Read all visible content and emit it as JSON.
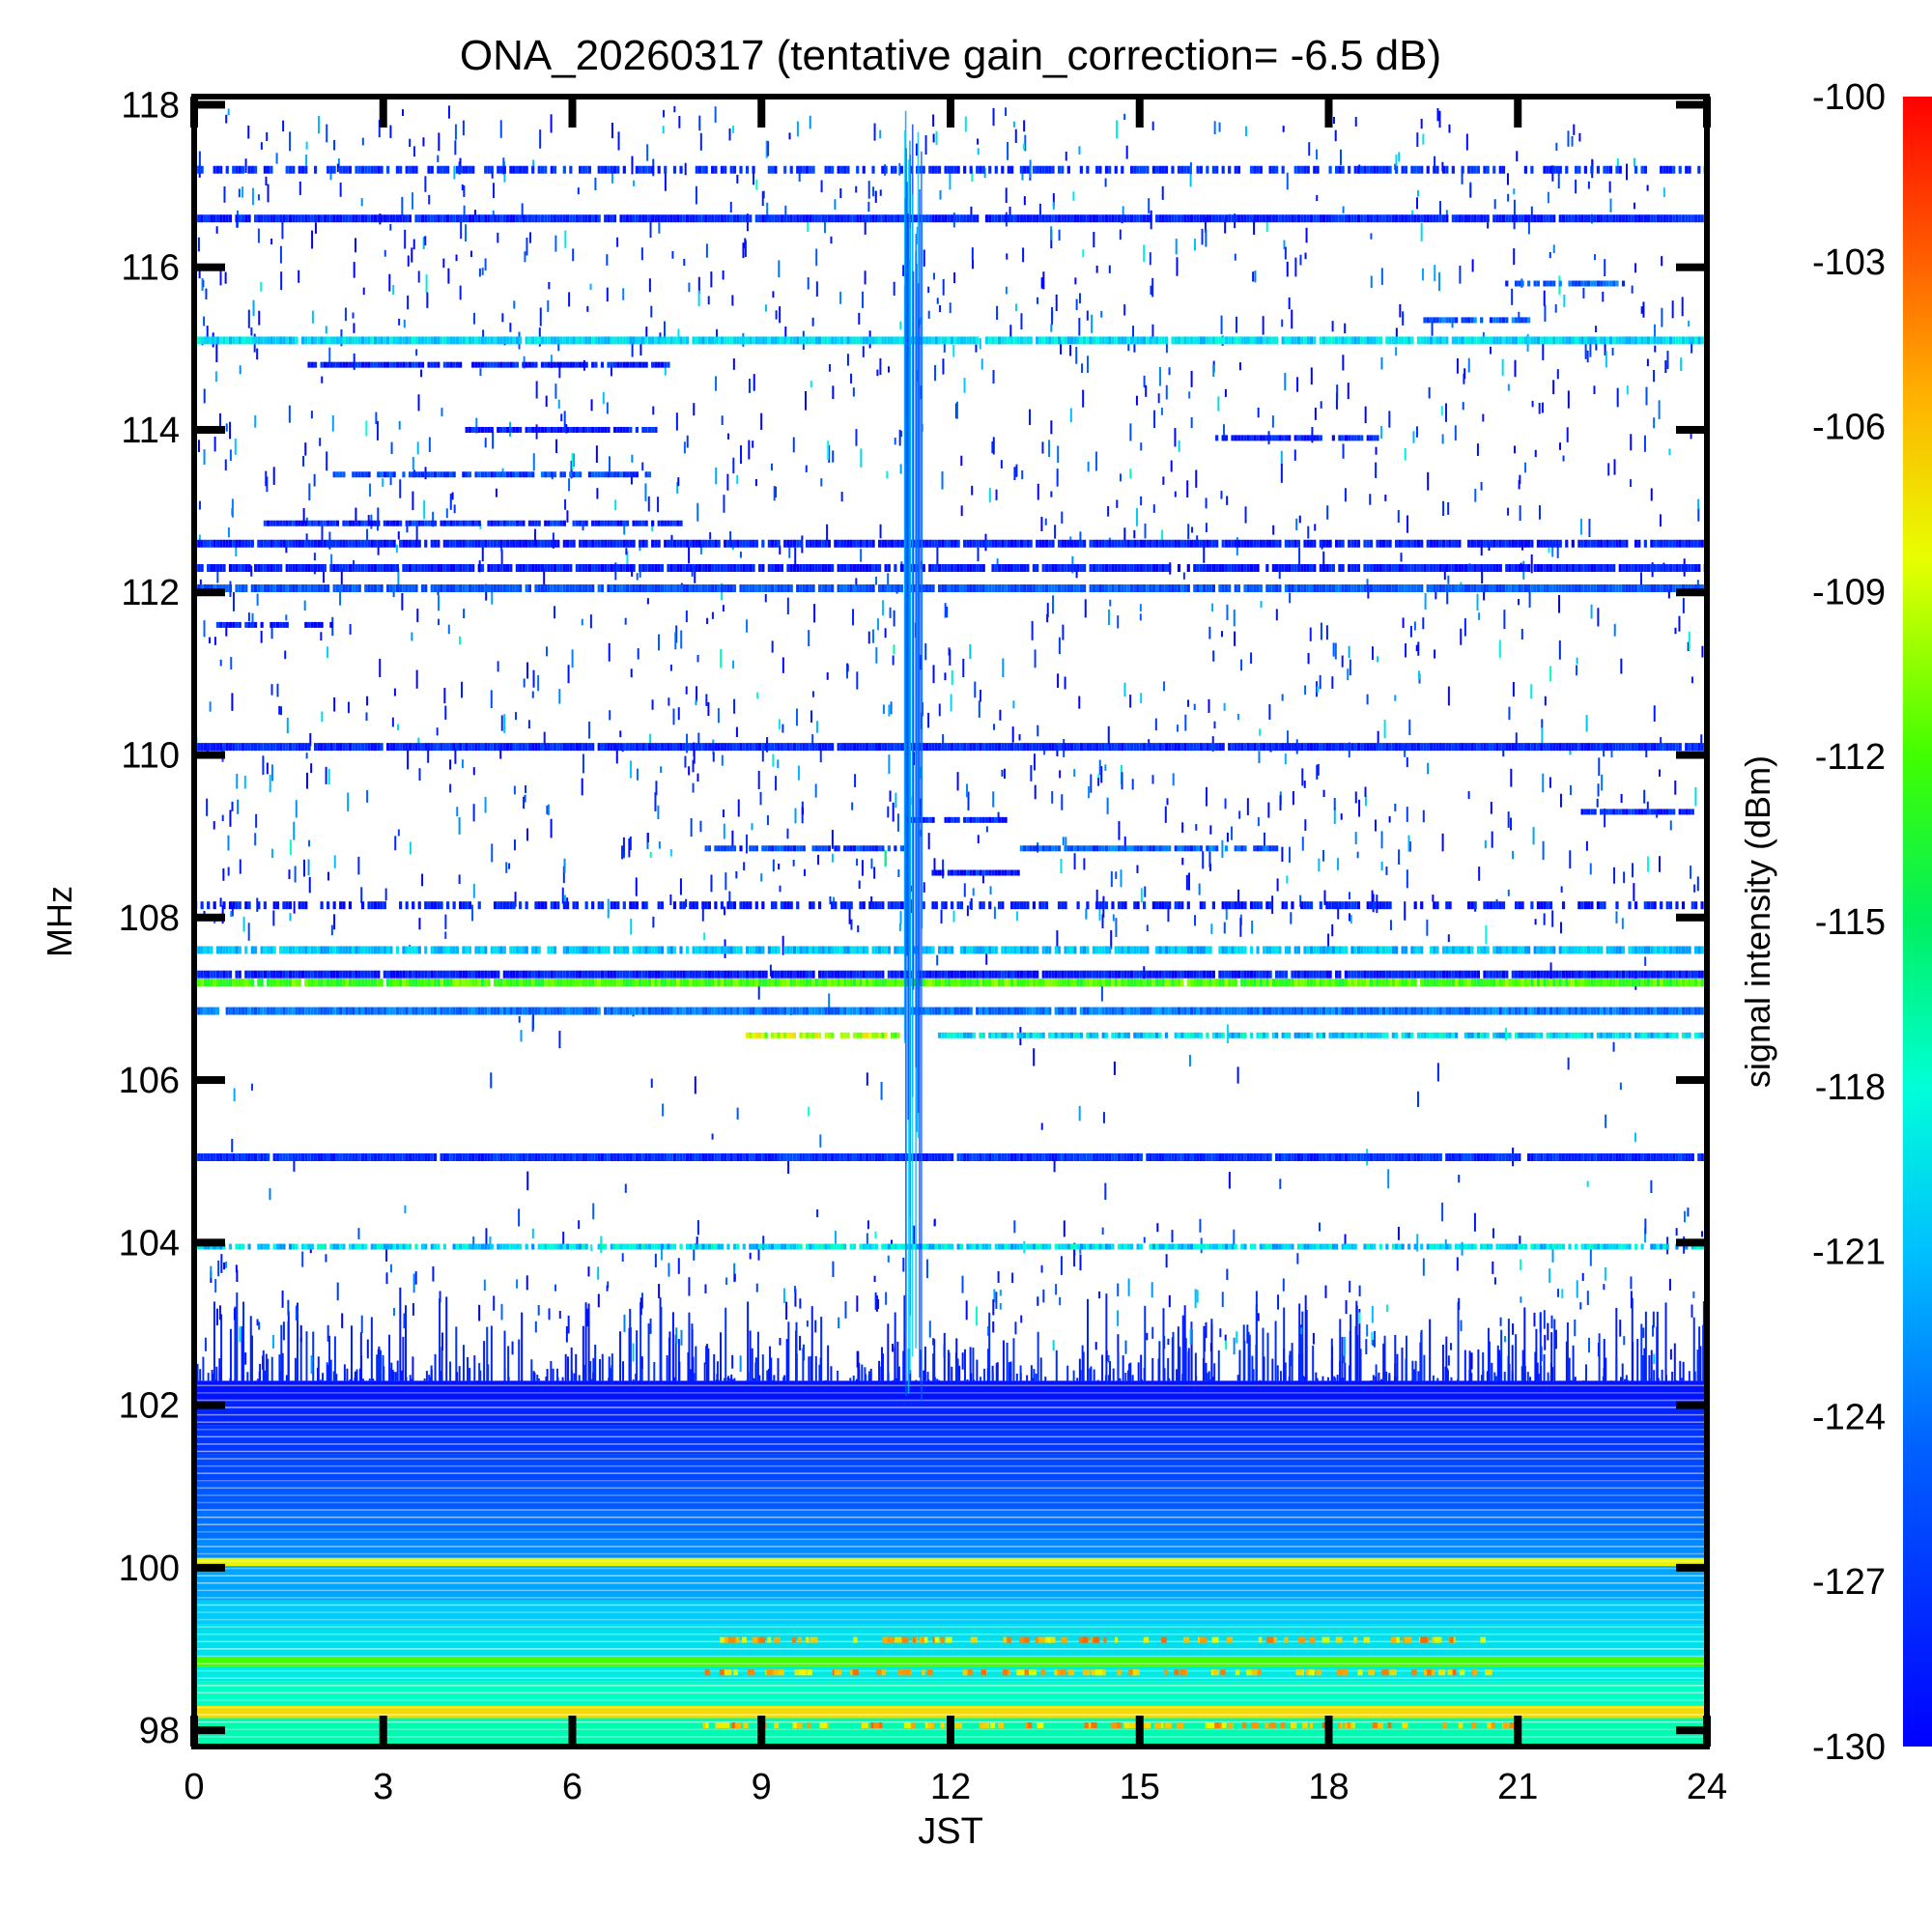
{
  "chart_data": {
    "type": "heatmap",
    "title": "ONA_20260317 (tentative gain_correction= -6.5 dB)",
    "xlabel": "JST",
    "ylabel": "MHz",
    "xlim": [
      0,
      24
    ],
    "ylim": [
      97.8,
      118.1
    ],
    "x_ticks": [
      0,
      3,
      6,
      9,
      12,
      15,
      18,
      21,
      24
    ],
    "y_ticks": [
      98,
      100,
      102,
      104,
      106,
      108,
      110,
      112,
      114,
      116,
      118
    ],
    "colorbar": {
      "label": "signal intensity (dBm)",
      "range": [
        -130,
        -100
      ],
      "ticks": [
        -100,
        -103,
        -106,
        -109,
        -112,
        -115,
        -118,
        -121,
        -124,
        -127,
        -130
      ]
    },
    "broadband_interference": {
      "x_start": 11.25,
      "x_end": 11.55,
      "y_start": 102.0,
      "y_end": 118.0
    },
    "continuous_bands": [
      {
        "freq": 117.2,
        "dbm": -127.5,
        "density": 0.6
      },
      {
        "freq": 116.6,
        "dbm": -128.0,
        "density": 0.97
      },
      {
        "freq": 115.1,
        "dbm": -120.0,
        "density": 0.98
      },
      {
        "freq": 112.6,
        "dbm": -128.5,
        "density": 0.92
      },
      {
        "freq": 112.3,
        "dbm": -128.5,
        "density": 0.9
      },
      {
        "freq": 112.05,
        "dbm": -125.5,
        "density": 0.95
      },
      {
        "freq": 110.1,
        "dbm": -128.0,
        "density": 0.98
      },
      {
        "freq": 108.15,
        "dbm": -128.5,
        "density": 0.55
      },
      {
        "freq": 107.6,
        "dbm": -121.0,
        "density": 0.85
      },
      {
        "freq": 107.3,
        "dbm": -128.5,
        "density": 0.97
      },
      {
        "freq": 107.2,
        "dbm": -112.0,
        "density": 0.98
      },
      {
        "freq": 106.85,
        "dbm": -124.0,
        "density": 0.98
      },
      {
        "freq": 105.05,
        "dbm": -127.5,
        "density": 0.98
      }
    ],
    "partial_bands": [
      {
        "freq": 114.8,
        "x_start": 1.8,
        "x_end": 7.5,
        "dbm": -128.5
      },
      {
        "freq": 114.0,
        "x_start": 4.3,
        "x_end": 7.3,
        "dbm": -128.5
      },
      {
        "freq": 113.45,
        "x_start": 2.2,
        "x_end": 7.2,
        "dbm": -126.5
      },
      {
        "freq": 112.85,
        "x_start": 1.1,
        "x_end": 7.7,
        "dbm": -128.0
      },
      {
        "freq": 113.9,
        "x_start": 16.2,
        "x_end": 18.8,
        "dbm": -128.5
      },
      {
        "freq": 109.2,
        "x_start": 11.3,
        "x_end": 12.9,
        "dbm": -128.5
      },
      {
        "freq": 108.85,
        "x_start": 13.1,
        "x_end": 17.2,
        "dbm": -125.5
      },
      {
        "freq": 108.85,
        "x_start": 8.1,
        "x_end": 11.3,
        "dbm": -127.0
      },
      {
        "freq": 108.55,
        "x_start": 11.7,
        "x_end": 13.1,
        "dbm": -128.5
      },
      {
        "freq": 111.6,
        "x_start": 0.3,
        "x_end": 2.2,
        "dbm": -128.5
      },
      {
        "freq": 109.3,
        "x_start": 22.0,
        "x_end": 23.8,
        "dbm": -128.5
      },
      {
        "freq": 106.55,
        "x_start": 8.7,
        "x_end": 11.2,
        "dbm": -110.0
      },
      {
        "freq": 106.55,
        "x_start": 11.8,
        "x_end": 24.0,
        "dbm": -120.0
      },
      {
        "freq": 103.95,
        "x_start": 0.0,
        "x_end": 24.0,
        "dbm": -120.0
      },
      {
        "freq": 115.35,
        "x_start": 19.5,
        "x_end": 21.2,
        "dbm": -125.0
      },
      {
        "freq": 115.8,
        "x_start": 20.8,
        "x_end": 22.7,
        "dbm": -125.5
      }
    ],
    "low_band_rows": [
      {
        "f0": 102.3,
        "f1": 102.05,
        "dbm": -129.0
      },
      {
        "f0": 102.05,
        "f1": 101.75,
        "dbm": -128.0
      },
      {
        "f0": 101.75,
        "f1": 101.4,
        "dbm": -127.0
      },
      {
        "f0": 101.4,
        "f1": 101.05,
        "dbm": -126.0
      },
      {
        "f0": 101.05,
        "f1": 100.7,
        "dbm": -125.0
      },
      {
        "f0": 100.7,
        "f1": 100.35,
        "dbm": -124.0
      },
      {
        "f0": 100.35,
        "f1": 100.12,
        "dbm": -123.0
      },
      {
        "f0": 100.12,
        "f1": 100.02,
        "dbm": -108.0
      },
      {
        "f0": 100.02,
        "f1": 99.6,
        "dbm": -122.0
      },
      {
        "f0": 99.6,
        "f1": 99.3,
        "dbm": -120.5
      },
      {
        "f0": 99.3,
        "f1": 98.9,
        "dbm": -119.5
      },
      {
        "f0": 98.9,
        "f1": 98.78,
        "dbm": -112.0
      },
      {
        "f0": 98.78,
        "f1": 98.6,
        "dbm": -119.0
      },
      {
        "f0": 98.6,
        "f1": 98.3,
        "dbm": -117.5
      },
      {
        "f0": 98.3,
        "f1": 98.15,
        "dbm": -107.0
      },
      {
        "f0": 98.15,
        "f1": 97.8,
        "dbm": -117.0
      }
    ]
  }
}
